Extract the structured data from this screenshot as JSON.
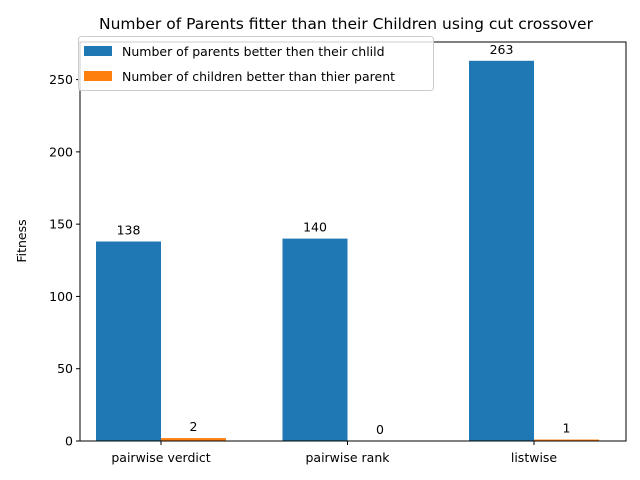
{
  "chart_data": {
    "type": "bar",
    "title": "Number of Parents fitter than their Children  using cut crossover",
    "xlabel": "",
    "ylabel": "Fitness",
    "categories": [
      "pairwise verdict",
      "pairwise rank",
      "listwise"
    ],
    "series": [
      {
        "name": "Number of parents better then their chlild",
        "values": [
          138,
          140,
          263
        ],
        "color": "#1f77b4"
      },
      {
        "name": "Number of children better than thier parent",
        "values": [
          2,
          0,
          1
        ],
        "color": "#ff7f0e"
      }
    ],
    "ylim": [
      0,
      276
    ],
    "yticks": [
      0,
      50,
      100,
      150,
      200,
      250
    ],
    "legend_position": "top-left",
    "grid": false,
    "show_data_labels": true
  }
}
